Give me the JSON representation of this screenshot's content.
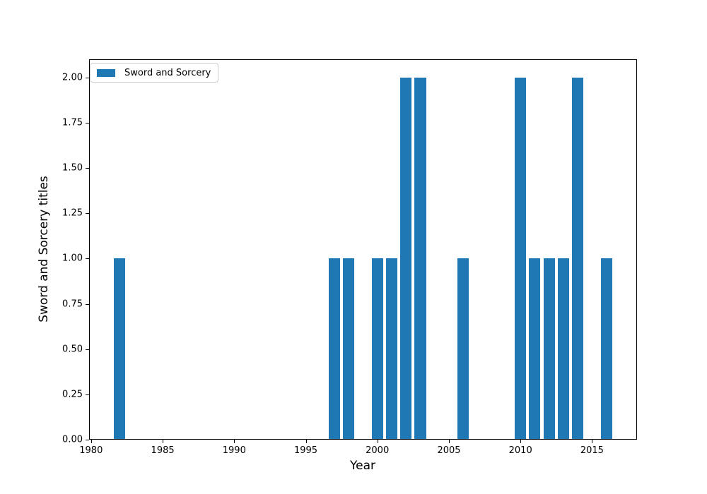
{
  "figure": {
    "background": "#ffffff",
    "spine_color": "#000000",
    "text_color": "#000000"
  },
  "chart_data": {
    "type": "bar",
    "title": "",
    "xlabel": "Year",
    "ylabel": "Sword and Sorcery titles",
    "series": [
      {
        "name": "Sword and Sorcery",
        "color": "#1f77b4",
        "x": [
          1982,
          1997,
          1998,
          2000,
          2001,
          2002,
          2003,
          2006,
          2010,
          2011,
          2012,
          2013,
          2014,
          2016
        ],
        "values": [
          1,
          1,
          1,
          1,
          1,
          2,
          2,
          1,
          2,
          1,
          1,
          1,
          2,
          1
        ]
      }
    ],
    "bar_width_years": 0.8,
    "xlim": [
      1979.86,
      2018.14
    ],
    "ylim": [
      0,
      2.1
    ],
    "xticks": [
      1980,
      1985,
      1990,
      1995,
      2000,
      2005,
      2010,
      2015
    ],
    "yticks": [
      0.0,
      0.25,
      0.5,
      0.75,
      1.0,
      1.25,
      1.5,
      1.75,
      2.0
    ],
    "ytick_decimals": 2,
    "grid": false,
    "legend": {
      "label": "Sword and Sorcery",
      "position": "upper left",
      "swatch_color": "#1f77b4"
    }
  }
}
